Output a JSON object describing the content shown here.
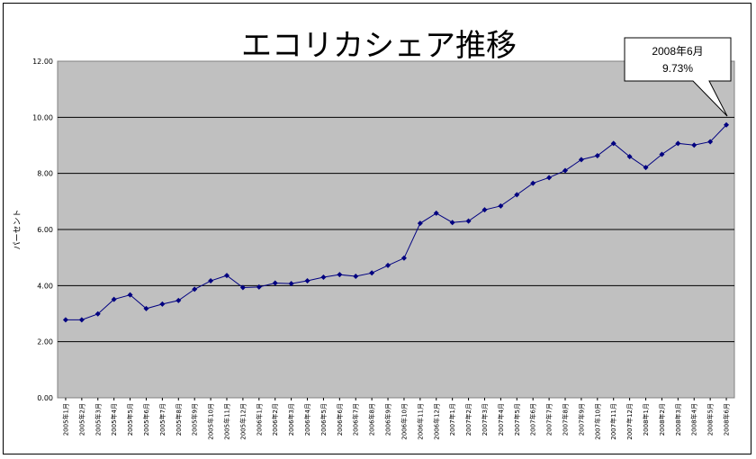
{
  "chart_data": {
    "type": "line",
    "title": "エコリカシェア推移",
    "ylabel": "パーセント",
    "xlabel": "",
    "ylim": [
      0,
      12
    ],
    "yticks": [
      "0.00",
      "2.00",
      "4.00",
      "6.00",
      "8.00",
      "10.00",
      "12.00"
    ],
    "grid": "horizontal",
    "categories": [
      "2005年1月",
      "2005年2月",
      "2005年3月",
      "2005年4月",
      "2005年5月",
      "2005年6月",
      "2005年7月",
      "2005年8月",
      "2005年9月",
      "2005年10月",
      "2005年11月",
      "2005年12月",
      "2006年1月",
      "2006年2月",
      "2006年3月",
      "2006年4月",
      "2006年5月",
      "2006年6月",
      "2006年7月",
      "2006年8月",
      "2006年9月",
      "2006年10月",
      "2006年11月",
      "2006年12月",
      "2007年1月",
      "2007年2月",
      "2007年3月",
      "2007年4月",
      "2007年5月",
      "2007年6月",
      "2007年7月",
      "2007年8月",
      "2007年9月",
      "2007年10月",
      "2007年11月",
      "2007年12月",
      "2008年1月",
      "2008年2月",
      "2008年3月",
      "2008年4月",
      "2008年5月",
      "2008年6月"
    ],
    "series": [
      {
        "values": [
          2.78,
          2.78,
          2.99,
          3.51,
          3.67,
          3.18,
          3.34,
          3.47,
          3.87,
          4.17,
          4.36,
          3.93,
          3.95,
          4.09,
          4.07,
          4.17,
          4.3,
          4.39,
          4.33,
          4.45,
          4.72,
          4.98,
          6.22,
          6.58,
          6.25,
          6.3,
          6.7,
          6.84,
          7.24,
          7.65,
          7.85,
          8.1,
          8.49,
          8.63,
          9.07,
          8.6,
          8.21,
          8.68,
          9.07,
          9.01,
          9.13,
          9.73
        ]
      }
    ],
    "colors": {
      "plot_bg": "#c0c0c0",
      "line": "#000080",
      "marker": "#000080",
      "grid": "#000000"
    },
    "annotation": {
      "line1": "2008年6月",
      "line2": "9.73%"
    }
  }
}
